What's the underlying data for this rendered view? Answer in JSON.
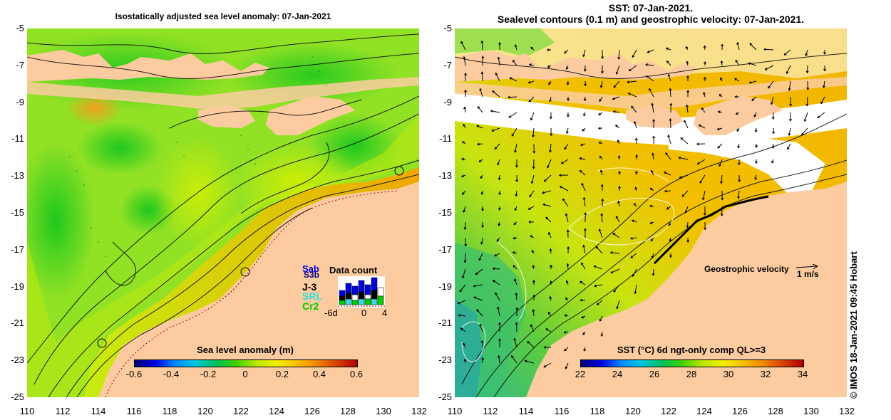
{
  "left_panel": {
    "title": "Isostatically adjusted sea level anomaly: 07-Jan-2021",
    "colorbar": {
      "title": "Sea level anomaly (m)",
      "ticks": [
        "-0.6",
        "-0.4",
        "-0.2",
        "0",
        "0.2",
        "0.4",
        "0.6"
      ],
      "range": [
        -0.6,
        0.6
      ]
    },
    "data_count": {
      "title": "Data count",
      "satellites": [
        {
          "name": "Sab",
          "color": "#0000dd"
        },
        {
          "name": "S3b",
          "color": "#0000dd"
        },
        {
          "name": "J-3",
          "color": "#000000"
        },
        {
          "name": "SRL",
          "color": "#33dddd"
        },
        {
          "name": "Cr2",
          "color": "#00cc00"
        }
      ],
      "x_ticks": [
        "-6d",
        "0",
        "4"
      ]
    }
  },
  "right_panel": {
    "title_line1": "SST: 07-Jan-2021.",
    "title_line2": "Sealevel contours (0.1 m) and geostrophic velocity: 07-Jan-2021.",
    "colorbar": {
      "title": "SST (°C) 6d ngt-only comp QL>=3",
      "ticks": [
        "22",
        "24",
        "26",
        "28",
        "30",
        "32",
        "34"
      ],
      "range": [
        22,
        34
      ]
    },
    "velocity_key": {
      "label": "Geostrophic velocity",
      "unit": "1 m/s"
    }
  },
  "axes": {
    "lat_ticks": [
      "-5",
      "-7",
      "-9",
      "-11",
      "-13",
      "-15",
      "-17",
      "-19",
      "-21",
      "-23",
      "-25"
    ],
    "lon_ticks": [
      "110",
      "112",
      "114",
      "116",
      "118",
      "120",
      "122",
      "124",
      "126",
      "128",
      "130",
      "132"
    ],
    "lat_range": [
      -25,
      -5
    ],
    "lon_range": [
      110,
      132
    ]
  },
  "credit": "© IMOS 18-Jan-2021 09:45 Hobart",
  "colors": {
    "land": "#fccca0",
    "ocean_green": "#66d83a",
    "ocean_yellow": "#f2f000",
    "warm_orange": "#f5a800",
    "sst_orange": "#f2b800",
    "cloud": "#ffffff"
  }
}
